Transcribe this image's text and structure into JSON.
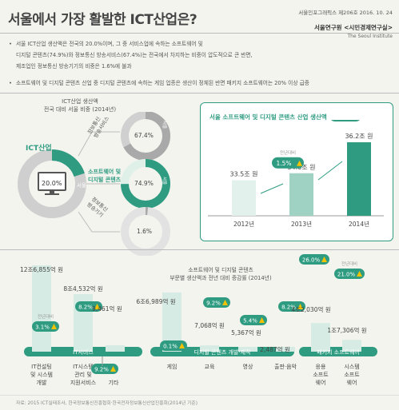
{
  "header": {
    "title": "서울에서 가장 활발한 ICT산업은?",
    "pubinfo": "서울인포그래픽스 제206호 2016. 10. 24",
    "org": "서울연구원 <시민경제연구실>",
    "org_en": "The Seoul Institute"
  },
  "bullets": [
    "서울 ICT산업 생산액은 전국의 20.0%이며, 그 중 서비스업에 속하는 소프트웨어 및",
    "디지털 콘텐츠(74.9%)와 정보통신 방송서비스(67.4%)는 전국에서 차지하는 비중이 압도적으로 큰 반면,",
    "제조업인 정보통신 방송기기의 비중은 1.6%에 불과",
    "소프트웨어 및 디지털 콘텐츠 산업 중 디지털 콘텐츠에 속하는 게임 업종은 생산이 정체된 반면 패키지 소프트웨어는 20% 이상 급증"
  ],
  "share_panel": {
    "title_line1": "ICT산업 생산액",
    "title_line2": "전국 대비 서울 비중 (2014년)",
    "ict_label": "ICT산업",
    "ict_value": "20.0%",
    "seoul_tag": "서울",
    "items": [
      {
        "label_l1": "정보통신",
        "label_l2": "방송서비스",
        "value": "67.4%",
        "tag": "서울"
      },
      {
        "label_l1": "소프트웨어 및",
        "label_l2": "디지털 콘텐츠",
        "value": "74.9%",
        "tag": "서울"
      },
      {
        "label_l1": "정보통신",
        "label_l2": "방송기기",
        "value": "1.6%",
        "tag": ""
      }
    ]
  },
  "growth_panel": {
    "title": "서울 소프트웨어 및 디지털 콘텐츠 산업 생산액",
    "prev_label": "전년대비",
    "bars": [
      {
        "year": "2012년",
        "value_label": "33.5조 원"
      },
      {
        "year": "2013년",
        "value_label": "34.0조 원",
        "growth": "1.5%"
      },
      {
        "year": "2014년",
        "value_label": "36.2조 원",
        "growth": "6.5%"
      }
    ]
  },
  "bottom": {
    "center_title_l1": "소프트웨어 및 디지털 콘텐츠",
    "center_title_l2": "부문별 생산액과 전년 대비 증감률 (2014년)",
    "prev_label": "전년대비",
    "groups": [
      {
        "name": "IT서비스"
      },
      {
        "name": "디지털 콘텐츠 개발·제작"
      },
      {
        "name": "패키지 소프트웨어"
      }
    ],
    "items": [
      {
        "cat_l1": "IT컨설팅",
        "cat_l2": "및 시스템",
        "cat_l3": "개발",
        "value_label": "12조6,855억 원",
        "growth": "3.1%"
      },
      {
        "cat_l1": "IT시스템",
        "cat_l2": "관리 및",
        "cat_l3": "지원서비스",
        "value_label": "8조4,532억 원",
        "growth": "8.2%"
      },
      {
        "cat_l1": "기타",
        "cat_l2": "",
        "cat_l3": "",
        "value_label": "9,461억 원",
        "growth": "9.2%"
      },
      {
        "cat_l1": "게임",
        "cat_l2": "",
        "cat_l3": "",
        "value_label": "6조6,989억 원",
        "growth": "0.1%"
      },
      {
        "cat_l1": "교육",
        "cat_l2": "",
        "cat_l3": "",
        "value_label": "7,068억 원",
        "growth": "9.2%"
      },
      {
        "cat_l1": "영상",
        "cat_l2": "",
        "cat_l3": "",
        "value_label": "5,367억 원",
        "growth": "5.4%"
      },
      {
        "cat_l1": "출판·음악",
        "cat_l2": "",
        "cat_l3": "",
        "value_label": "2,487억 원",
        "growth": "8.2%"
      },
      {
        "cat_l1": "응용",
        "cat_l2": "소프트",
        "cat_l3": "웨어",
        "value_label": "4조2,030억 원",
        "growth": "26.0%"
      },
      {
        "cat_l1": "시스템",
        "cat_l2": "소프트",
        "cat_l3": "웨어",
        "value_label": "1조7,306억 원",
        "growth": "21.0%"
      }
    ]
  },
  "footer": "자료: 2015 ICT실태조사, 한국정보통신진흥협회·한국전자정보통신산업진흥회(2014년 기준)",
  "colors": {
    "teal": "#2f9c82",
    "light_teal": "#dff0e8",
    "grey": "#a9a9a9",
    "yellow": "#f2c200",
    "bg": "#f4f4ef"
  },
  "chart_data": [
    {
      "type": "pie",
      "title": "ICT산업 생산액 전국 대비 서울 비중 (2014년)",
      "categories": [
        "ICT산업",
        "정보통신 방송서비스",
        "소프트웨어 및 디지털 콘텐츠",
        "정보통신 방송기기"
      ],
      "values": [
        20.0,
        67.4,
        74.9,
        1.6
      ],
      "unit": "%"
    },
    {
      "type": "bar",
      "title": "서울 소프트웨어 및 디지털 콘텐츠 산업 생산액",
      "categories": [
        "2012년",
        "2013년",
        "2014년"
      ],
      "values": [
        33.5,
        34.0,
        36.2
      ],
      "growth": [
        null,
        1.5,
        6.5
      ],
      "unit": "조 원"
    },
    {
      "type": "bar",
      "title": "소프트웨어 및 디지털 콘텐츠 부문별 생산액과 전년 대비 증감률 (2014년)",
      "categories": [
        "IT컨설팅 및 시스템 개발",
        "IT시스템 관리 및 지원서비스",
        "기타",
        "게임",
        "교육",
        "영상",
        "출판·음악",
        "응용 소프트웨어",
        "시스템 소프트웨어"
      ],
      "values": [
        126855,
        84532,
        9461,
        66989,
        7068,
        5367,
        2487,
        42030,
        17306
      ],
      "growth": [
        3.1,
        8.2,
        9.2,
        0.1,
        9.2,
        5.4,
        8.2,
        26.0,
        21.0
      ],
      "unit": "억 원"
    }
  ]
}
